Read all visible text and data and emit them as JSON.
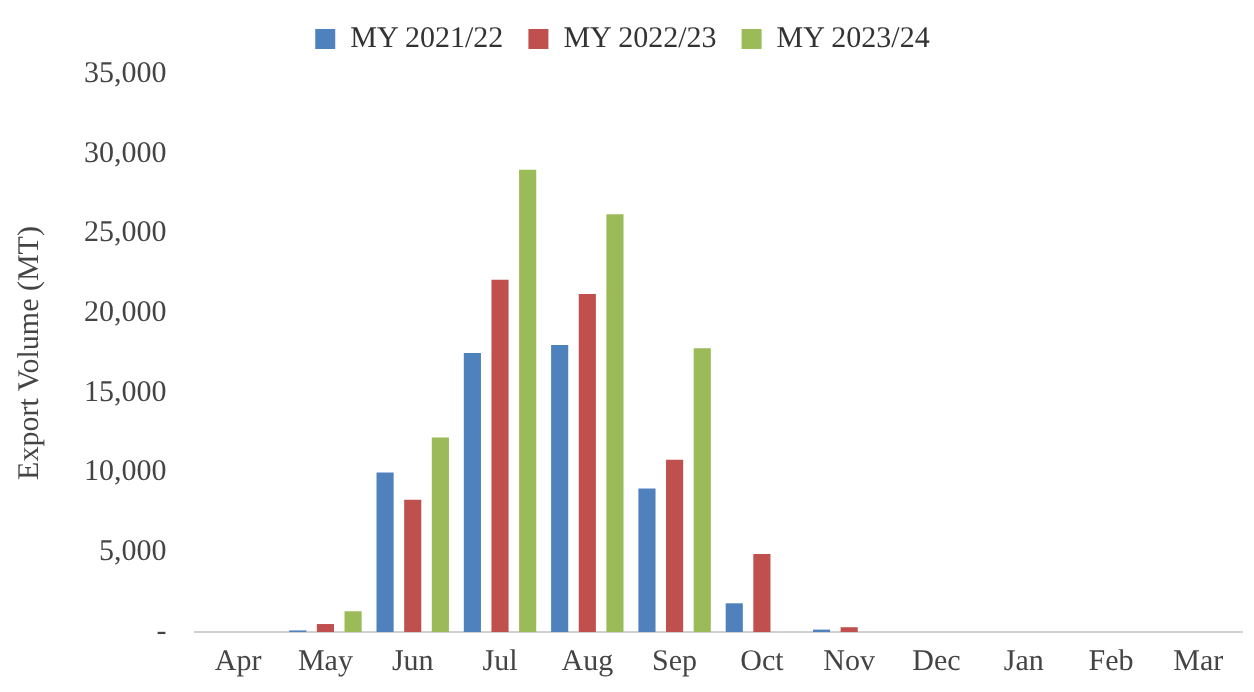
{
  "chart_data": {
    "type": "bar",
    "ylabel": "Export Volume (MT)",
    "categories": [
      "Apr",
      "May",
      "Jun",
      "Jul",
      "Aug",
      "Sep",
      "Oct",
      "Nov",
      "Dec",
      "Jan",
      "Feb",
      "Mar"
    ],
    "series": [
      {
        "name": "MY 2021/22",
        "color": "#4f81bd",
        "values": [
          0,
          100,
          10000,
          17500,
          18000,
          9000,
          1800,
          150,
          0,
          0,
          0,
          0
        ]
      },
      {
        "name": "MY 2022/23",
        "color": "#c0504d",
        "values": [
          0,
          500,
          8300,
          22100,
          21200,
          10800,
          4900,
          300,
          0,
          0,
          0,
          0
        ]
      },
      {
        "name": "MY 2023/24",
        "color": "#9bbb59",
        "values": [
          0,
          1300,
          12200,
          29000,
          26200,
          17800,
          0,
          0,
          0,
          0,
          0,
          0
        ]
      }
    ],
    "ylim": [
      0,
      35000
    ],
    "yticks": [
      {
        "value": 0,
        "label": "-"
      },
      {
        "value": 5000,
        "label": "5,000"
      },
      {
        "value": 10000,
        "label": "10,000"
      },
      {
        "value": 15000,
        "label": "15,000"
      },
      {
        "value": 20000,
        "label": "20,000"
      },
      {
        "value": 25000,
        "label": "25,000"
      },
      {
        "value": 30000,
        "label": "30,000"
      },
      {
        "value": 35000,
        "label": "35,000"
      }
    ],
    "grid": false,
    "legend": "top"
  }
}
